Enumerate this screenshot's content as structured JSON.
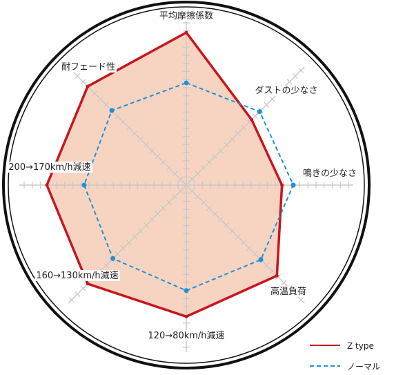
{
  "chart_data": {
    "type": "radar",
    "axes": [
      "平均摩擦係数",
      "ダストの少なさ",
      "鳴きの少なさ",
      "高温負荷",
      "120→80km/h減速",
      "160→130km/h減速",
      "200→170km/h減速",
      "耐フェード性"
    ],
    "range": [
      0,
      10
    ],
    "grid": true,
    "legend_position": "bottom-right",
    "series": [
      {
        "name": "Z type",
        "values": [
          9.4,
          5.7,
          5.9,
          7.9,
          8.1,
          8.6,
          8.6,
          8.6
        ],
        "color": "#c8161d",
        "fill": "#f7d4c2",
        "style": "solid"
      },
      {
        "name": "ノーマル",
        "values": [
          6.3,
          6.4,
          6.6,
          6.5,
          6.5,
          6.4,
          6.3,
          6.5
        ],
        "color": "#1e90d6",
        "style": "dashed"
      }
    ]
  }
}
